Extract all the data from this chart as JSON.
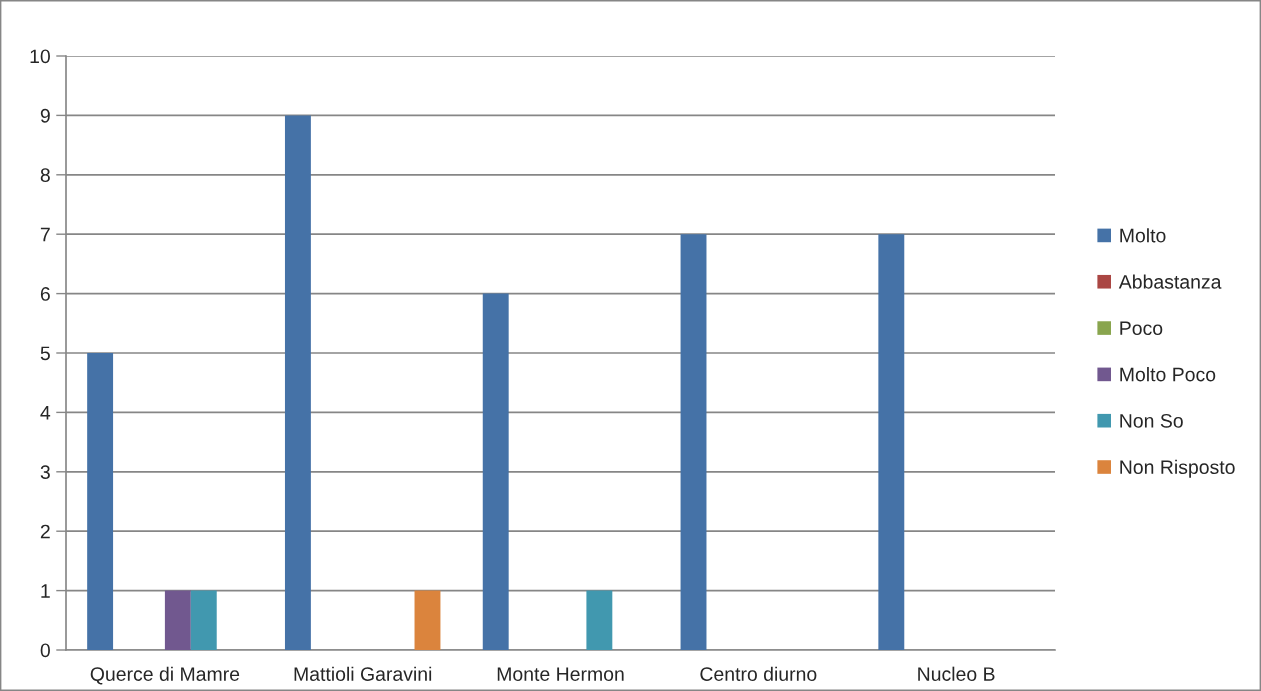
{
  "chart_data": {
    "type": "bar",
    "categories": [
      "Querce di Mamre",
      "Mattioli Garavini",
      "Monte Hermon",
      "Centro diurno",
      "Nucleo B"
    ],
    "series": [
      {
        "name": "Molto",
        "color": "#4572a7",
        "values": [
          5,
          9,
          6,
          7,
          7
        ]
      },
      {
        "name": "Abbastanza",
        "color": "#aa4643",
        "values": [
          0,
          0,
          0,
          0,
          0
        ]
      },
      {
        "name": "Poco",
        "color": "#89a54e",
        "values": [
          0,
          0,
          0,
          0,
          0
        ]
      },
      {
        "name": "Molto Poco",
        "color": "#71588f",
        "values": [
          1,
          0,
          0,
          0,
          0
        ]
      },
      {
        "name": "Non So",
        "color": "#4198af",
        "values": [
          1,
          0,
          1,
          0,
          0
        ]
      },
      {
        "name": "Non Risposto",
        "color": "#db843d",
        "values": [
          0,
          1,
          0,
          0,
          0
        ]
      }
    ],
    "ylim": [
      0,
      10
    ],
    "yticks": [
      0,
      1,
      2,
      3,
      4,
      5,
      6,
      7,
      8,
      9,
      10
    ],
    "grid": "y",
    "legend": "right"
  }
}
